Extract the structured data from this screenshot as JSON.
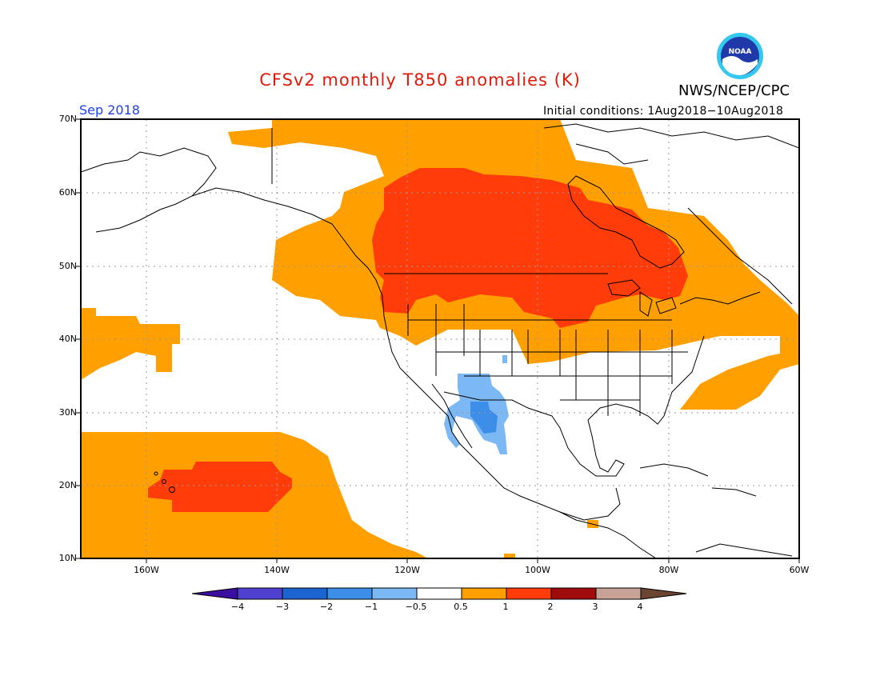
{
  "header": {
    "title": "CFSv2 monthly T850 anomalies (K)",
    "agency": "NWS/NCEP/CPC",
    "month": "Sep 2018",
    "initial_conditions": "Initial conditions: 1Aug2018−10Aug2018",
    "logo_text": "NOAA"
  },
  "colors": {
    "title": "#e01a0a",
    "month": "#2040e0",
    "land_outline": "#000000",
    "grid": "#999999"
  },
  "map": {
    "lat_labels": [
      "70N",
      "60N",
      "50N",
      "40N",
      "30N",
      "20N",
      "10N"
    ],
    "lon_labels": [
      "160W",
      "140W",
      "120W",
      "100W",
      "80W",
      "60W"
    ]
  },
  "legend": {
    "bins": [
      {
        "color": "#3a0fa0"
      },
      {
        "color": "#5040d0"
      },
      {
        "color": "#1c64d0"
      },
      {
        "color": "#3c8ee8"
      },
      {
        "color": "#7cb8f4"
      },
      {
        "color": "#ffffff"
      },
      {
        "color": "#ffa000"
      },
      {
        "color": "#ff3c0a"
      },
      {
        "color": "#a00c0c"
      },
      {
        "color": "#c8a296"
      },
      {
        "color": "#6c4432"
      }
    ],
    "labels": [
      "−4",
      "−3",
      "−2",
      "−1",
      "−0.5",
      "0.5",
      "1",
      "2",
      "3",
      "4"
    ]
  }
}
